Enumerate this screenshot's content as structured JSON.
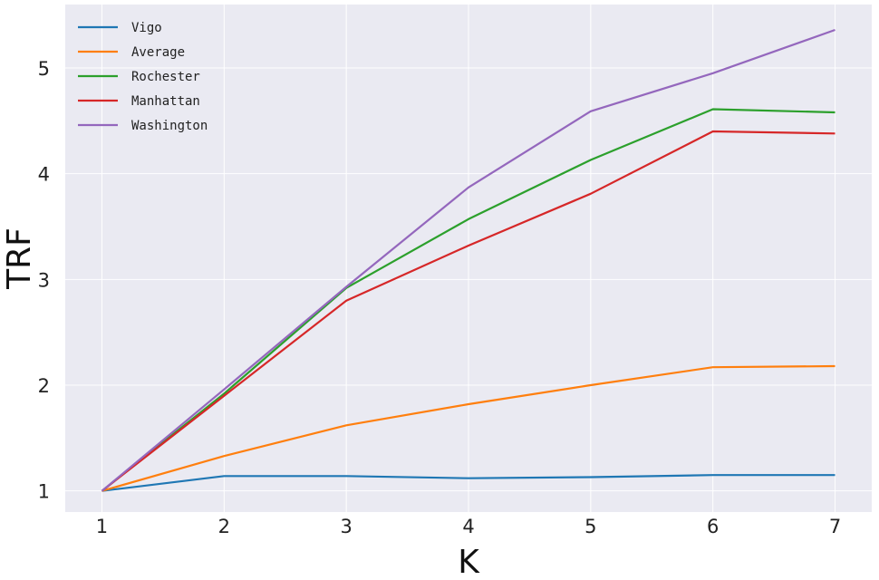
{
  "chart_data": {
    "type": "line",
    "title": "",
    "xlabel": "K",
    "ylabel": "TRF",
    "x": [
      1,
      2,
      3,
      4,
      5,
      6,
      7
    ],
    "xlim": [
      0.7,
      7.3
    ],
    "ylim": [
      0.8,
      5.6
    ],
    "xticks": [
      1,
      2,
      3,
      4,
      5,
      6,
      7
    ],
    "yticks": [
      1,
      2,
      3,
      4,
      5
    ],
    "grid": true,
    "legend_position": "top-left",
    "series": [
      {
        "name": "Vigo",
        "color": "#1f77b4",
        "values": [
          1.0,
          1.14,
          1.14,
          1.12,
          1.13,
          1.15,
          1.15
        ]
      },
      {
        "name": "Average",
        "color": "#ff7f0e",
        "values": [
          1.0,
          1.33,
          1.62,
          1.82,
          2.0,
          2.17,
          2.18
        ]
      },
      {
        "name": "Rochester",
        "color": "#2ca02c",
        "values": [
          1.0,
          1.92,
          2.92,
          3.57,
          4.13,
          4.61,
          4.58
        ]
      },
      {
        "name": "Manhattan",
        "color": "#d62728",
        "values": [
          1.0,
          1.9,
          2.8,
          3.32,
          3.81,
          4.4,
          4.38
        ]
      },
      {
        "name": "Washington",
        "color": "#9467bd",
        "values": [
          1.0,
          1.96,
          2.93,
          3.87,
          4.59,
          4.95,
          5.36
        ]
      }
    ]
  }
}
